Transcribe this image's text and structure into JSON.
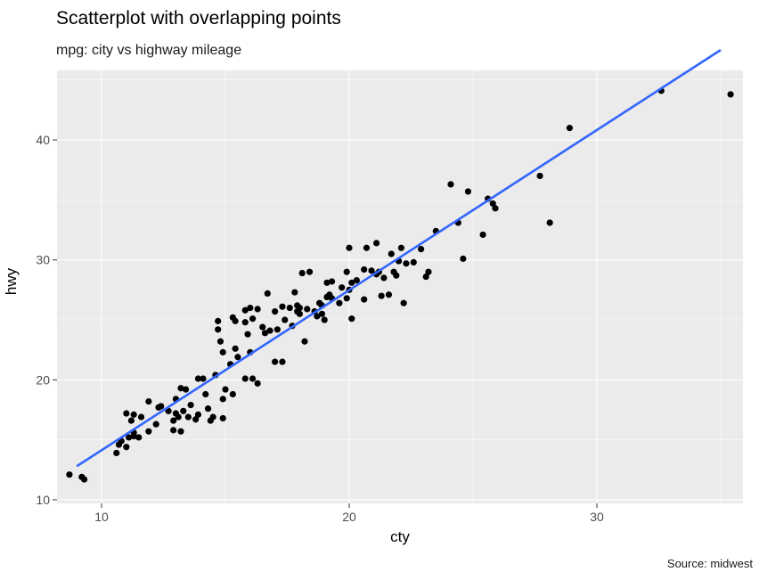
{
  "chart_data": {
    "type": "scatter",
    "title": "Scatterplot with overlapping points",
    "subtitle": "mpg: city vs highway mileage",
    "caption": "Source: midwest",
    "xlabel": "cty",
    "ylabel": "hwy",
    "xlim": [
      8.2,
      35.9
    ],
    "ylim": [
      9.7,
      45.8
    ],
    "xticks": [
      10,
      20,
      30
    ],
    "yticks": [
      10,
      20,
      30,
      40
    ],
    "grid": true,
    "legend": "none",
    "colors": {
      "panel": "#ebebeb",
      "grid_major": "#ffffff",
      "point": "#000000",
      "smooth": "#3366ff",
      "tick_text": "#4d4d4d"
    },
    "smooth_line": {
      "method": "lm",
      "x": [
        9,
        35
      ],
      "y": [
        12.8,
        47.5
      ]
    },
    "points": [
      [
        8.7,
        12.1
      ],
      [
        9.2,
        11.9
      ],
      [
        9.3,
        11.7
      ],
      [
        10.6,
        13.9
      ],
      [
        10.7,
        14.6
      ],
      [
        10.8,
        14.9
      ],
      [
        11.0,
        14.4
      ],
      [
        11.1,
        15.2
      ],
      [
        11.3,
        15.3
      ],
      [
        11.5,
        15.2
      ],
      [
        11.0,
        17.2
      ],
      [
        11.2,
        16.6
      ],
      [
        11.3,
        17.1
      ],
      [
        11.6,
        16.9
      ],
      [
        11.3,
        15.6
      ],
      [
        11.9,
        15.7
      ],
      [
        11.9,
        18.2
      ],
      [
        12.3,
        17.7
      ],
      [
        12.2,
        16.3
      ],
      [
        12.4,
        17.8
      ],
      [
        12.7,
        17.4
      ],
      [
        12.9,
        16.6
      ],
      [
        13.0,
        17.2
      ],
      [
        13.1,
        16.9
      ],
      [
        13.3,
        17.4
      ],
      [
        13.0,
        18.4
      ],
      [
        13.2,
        19.3
      ],
      [
        13.4,
        19.2
      ],
      [
        12.9,
        15.8
      ],
      [
        13.2,
        15.7
      ],
      [
        13.5,
        16.9
      ],
      [
        13.6,
        17.9
      ],
      [
        13.8,
        16.7
      ],
      [
        13.9,
        17.1
      ],
      [
        13.9,
        20.1
      ],
      [
        14.2,
        18.8
      ],
      [
        14.3,
        17.6
      ],
      [
        14.4,
        16.6
      ],
      [
        14.5,
        16.9
      ],
      [
        14.1,
        20.1
      ],
      [
        14.7,
        24.2
      ],
      [
        14.7,
        24.9
      ],
      [
        14.9,
        22.3
      ],
      [
        14.8,
        23.2
      ],
      [
        14.6,
        20.4
      ],
      [
        14.9,
        16.8
      ],
      [
        14.9,
        18.4
      ],
      [
        15.0,
        19.2
      ],
      [
        15.3,
        25.2
      ],
      [
        15.4,
        24.9
      ],
      [
        15.4,
        22.6
      ],
      [
        15.5,
        21.9
      ],
      [
        15.2,
        21.3
      ],
      [
        15.3,
        18.8
      ],
      [
        15.8,
        25.8
      ],
      [
        15.8,
        24.8
      ],
      [
        15.9,
        23.8
      ],
      [
        16.0,
        26.0
      ],
      [
        16.1,
        25.1
      ],
      [
        16.0,
        22.3
      ],
      [
        15.8,
        20.1
      ],
      [
        16.1,
        20.1
      ],
      [
        16.3,
        19.7
      ],
      [
        16.3,
        25.9
      ],
      [
        16.5,
        24.4
      ],
      [
        16.6,
        23.9
      ],
      [
        16.7,
        27.2
      ],
      [
        16.8,
        24.1
      ],
      [
        17.0,
        25.7
      ],
      [
        17.1,
        24.2
      ],
      [
        17.3,
        26.1
      ],
      [
        17.4,
        25.0
      ],
      [
        17.0,
        21.5
      ],
      [
        17.3,
        21.5
      ],
      [
        17.6,
        26.0
      ],
      [
        17.7,
        24.5
      ],
      [
        17.8,
        27.3
      ],
      [
        17.9,
        26.2
      ],
      [
        17.9,
        25.7
      ],
      [
        18.0,
        25.5
      ],
      [
        18.1,
        28.9
      ],
      [
        18.0,
        26.0
      ],
      [
        18.3,
        25.9
      ],
      [
        18.4,
        29.0
      ],
      [
        18.2,
        23.2
      ],
      [
        18.6,
        25.7
      ],
      [
        18.7,
        25.3
      ],
      [
        18.8,
        26.4
      ],
      [
        18.9,
        26.2
      ],
      [
        18.9,
        25.5
      ],
      [
        19.1,
        26.9
      ],
      [
        19.1,
        28.1
      ],
      [
        19.2,
        27.1
      ],
      [
        19.3,
        26.8
      ],
      [
        19.3,
        28.2
      ],
      [
        19.0,
        25.0
      ],
      [
        19.6,
        26.4
      ],
      [
        19.7,
        27.7
      ],
      [
        19.9,
        26.8
      ],
      [
        19.9,
        29.0
      ],
      [
        20.0,
        27.5
      ],
      [
        20.0,
        31.0
      ],
      [
        20.1,
        25.1
      ],
      [
        20.1,
        28.1
      ],
      [
        20.3,
        28.3
      ],
      [
        20.6,
        29.2
      ],
      [
        20.7,
        31.0
      ],
      [
        20.9,
        29.1
      ],
      [
        20.6,
        26.7
      ],
      [
        21.1,
        28.8
      ],
      [
        21.1,
        31.4
      ],
      [
        21.2,
        29.0
      ],
      [
        21.4,
        28.5
      ],
      [
        21.3,
        27.0
      ],
      [
        21.7,
        30.5
      ],
      [
        21.8,
        29.0
      ],
      [
        21.9,
        28.7
      ],
      [
        22.0,
        29.9
      ],
      [
        21.6,
        27.1
      ],
      [
        22.1,
        31.0
      ],
      [
        22.2,
        26.4
      ],
      [
        22.3,
        29.7
      ],
      [
        22.6,
        29.8
      ],
      [
        22.9,
        30.9
      ],
      [
        23.2,
        29.0
      ],
      [
        23.1,
        28.6
      ],
      [
        23.5,
        32.4
      ],
      [
        24.1,
        36.3
      ],
      [
        24.4,
        33.1
      ],
      [
        24.6,
        30.1
      ],
      [
        24.8,
        35.7
      ],
      [
        25.4,
        32.1
      ],
      [
        25.6,
        35.1
      ],
      [
        25.8,
        34.7
      ],
      [
        25.9,
        34.3
      ],
      [
        27.7,
        37.0
      ],
      [
        28.1,
        33.1
      ],
      [
        28.9,
        41.0
      ],
      [
        32.6,
        44.1
      ],
      [
        35.4,
        43.8
      ]
    ]
  }
}
